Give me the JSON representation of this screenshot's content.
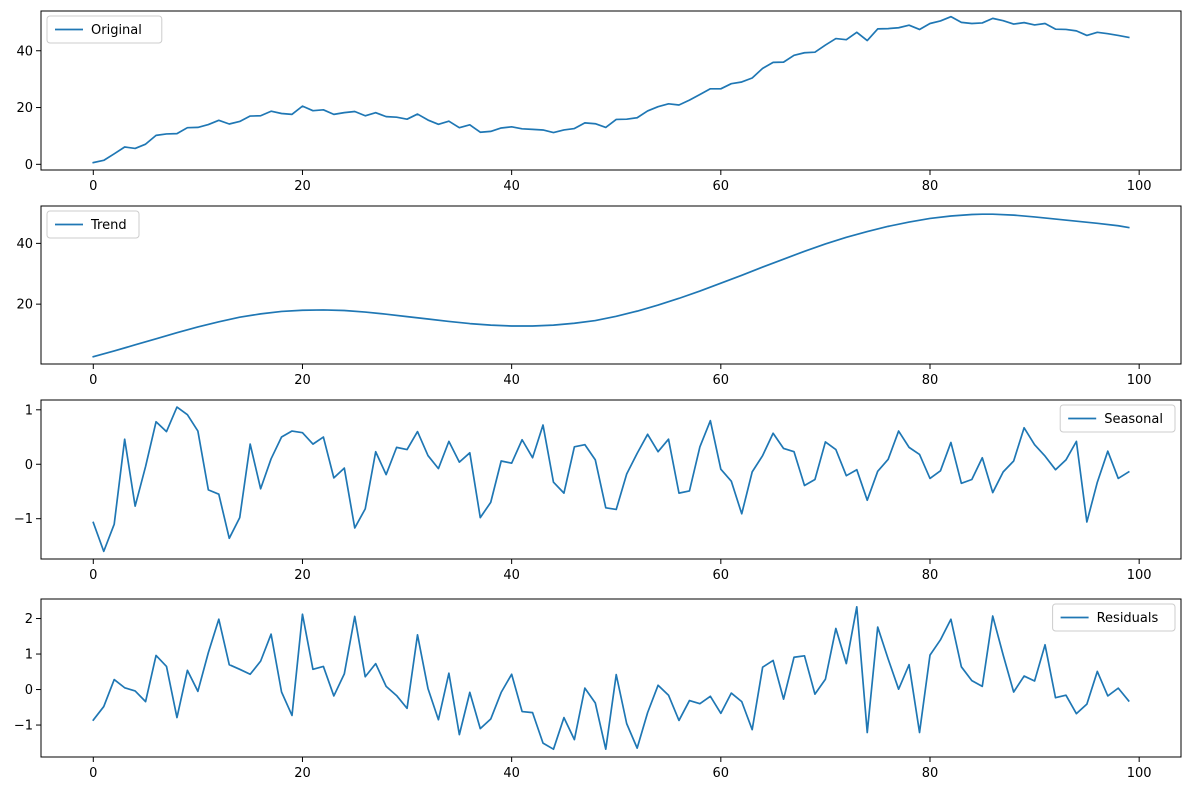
{
  "chart_data": [
    {
      "type": "line",
      "legend_position": "top-left",
      "grid": false,
      "xlim": [
        -5,
        104
      ],
      "ylim": [
        -2,
        54
      ],
      "xticks": [
        0,
        20,
        40,
        60,
        80,
        100
      ],
      "yticks": [
        0,
        20,
        40
      ],
      "series": [
        {
          "name": "Original",
          "color": "#1f77b4",
          "x": [
            0,
            1,
            2,
            3,
            4,
            5,
            6,
            7,
            8,
            9,
            10,
            11,
            12,
            13,
            14,
            15,
            16,
            17,
            18,
            19,
            20,
            21,
            22,
            23,
            24,
            25,
            26,
            27,
            28,
            29,
            30,
            31,
            32,
            33,
            34,
            35,
            36,
            37,
            38,
            39,
            40,
            41,
            42,
            43,
            44,
            45,
            46,
            47,
            48,
            49,
            50,
            51,
            52,
            53,
            54,
            55,
            56,
            57,
            58,
            59,
            60,
            61,
            62,
            63,
            64,
            65,
            66,
            67,
            68,
            69,
            70,
            71,
            72,
            73,
            74,
            75,
            76,
            77,
            78,
            79,
            80,
            81,
            82,
            83,
            84,
            85,
            86,
            87,
            88,
            89,
            90,
            91,
            92,
            93,
            94,
            95,
            96,
            97,
            98,
            99
          ],
          "values": [
            0.6,
            1.4,
            3.7,
            6.1,
            5.6,
            7.1,
            10.2,
            10.7,
            10.8,
            12.9,
            13.0,
            14.0,
            15.5,
            14.2,
            15.1,
            17.0,
            17.1,
            18.7,
            17.9,
            17.6,
            20.5,
            18.9,
            19.2,
            17.6,
            18.2,
            18.6,
            17.1,
            18.2,
            16.8,
            16.6,
            15.9,
            17.7,
            15.6,
            14.1,
            15.2,
            12.9,
            13.9,
            11.3,
            11.6,
            12.8,
            13.2,
            12.5,
            12.3,
            12.1,
            11.2,
            12.1,
            12.6,
            14.6,
            14.3,
            13.0,
            15.8,
            15.9,
            16.4,
            18.8,
            20.3,
            21.3,
            20.9,
            22.6,
            24.6,
            26.6,
            26.6,
            28.4,
            29.0,
            30.4,
            33.8,
            35.9,
            36.0,
            38.4,
            39.3,
            39.5,
            42.0,
            44.3,
            43.9,
            46.5,
            43.6,
            47.7,
            47.8,
            48.1,
            49.0,
            47.5,
            49.6,
            50.5,
            52.0,
            50.0,
            49.6,
            49.8,
            51.4,
            50.6,
            49.4,
            49.9,
            49.1,
            49.6,
            47.6,
            47.5,
            47.0,
            45.4,
            46.5,
            46.0,
            45.4,
            44.7
          ]
        }
      ]
    },
    {
      "type": "line",
      "legend_position": "top-left",
      "grid": false,
      "xlim": [
        -5,
        104
      ],
      "ylim": [
        0.3,
        52.3
      ],
      "xticks": [
        0,
        20,
        40,
        60,
        80,
        100
      ],
      "yticks": [
        20,
        40
      ],
      "series": [
        {
          "name": "Trend",
          "color": "#1f77b4",
          "x": [
            0,
            2,
            4,
            6,
            8,
            10,
            12,
            14,
            16,
            18,
            20,
            22,
            24,
            26,
            28,
            30,
            32,
            34,
            36,
            38,
            40,
            41,
            42,
            44,
            46,
            48,
            50,
            52,
            54,
            56,
            58,
            60,
            62,
            64,
            66,
            68,
            70,
            72,
            74,
            76,
            78,
            80,
            82,
            84,
            85,
            86,
            88,
            90,
            92,
            94,
            96,
            98,
            99
          ],
          "values": [
            2.7,
            4.6,
            6.6,
            8.6,
            10.6,
            12.5,
            14.2,
            15.7,
            16.8,
            17.6,
            18.0,
            18.1,
            17.9,
            17.4,
            16.7,
            15.9,
            15.1,
            14.3,
            13.6,
            13.1,
            12.8,
            12.8,
            12.8,
            13.1,
            13.7,
            14.6,
            16.0,
            17.7,
            19.7,
            21.9,
            24.3,
            26.9,
            29.5,
            32.2,
            34.8,
            37.4,
            39.8,
            42.0,
            43.9,
            45.6,
            47.0,
            48.2,
            49.0,
            49.5,
            49.6,
            49.6,
            49.3,
            48.7,
            48.0,
            47.3,
            46.6,
            45.8,
            45.2
          ]
        }
      ]
    },
    {
      "type": "line",
      "legend_position": "top-right",
      "grid": false,
      "xlim": [
        -5,
        104
      ],
      "ylim": [
        -1.74,
        1.18
      ],
      "xticks": [
        0,
        20,
        40,
        60,
        80,
        100
      ],
      "yticks": [
        -1,
        0,
        1
      ],
      "series": [
        {
          "name": "Seasonal",
          "color": "#1f77b4",
          "x": [
            0,
            1,
            2,
            3,
            4,
            5,
            6,
            7,
            8,
            9,
            10,
            11,
            12,
            13,
            14,
            15,
            16,
            17,
            18,
            19,
            20,
            21,
            22,
            23,
            24,
            25,
            26,
            27,
            28,
            29,
            30,
            31,
            32,
            33,
            34,
            35,
            36,
            37,
            38,
            39,
            40,
            41,
            42,
            43,
            44,
            45,
            46,
            47,
            48,
            49,
            50,
            51,
            52,
            53,
            54,
            55,
            56,
            57,
            58,
            59,
            60,
            61,
            62,
            63,
            64,
            65,
            66,
            67,
            68,
            69,
            70,
            71,
            72,
            73,
            74,
            75,
            76,
            77,
            78,
            79,
            80,
            81,
            82,
            83,
            84,
            85,
            86,
            87,
            88,
            89,
            90,
            91,
            92,
            93,
            94,
            95,
            96,
            97,
            98,
            99
          ],
          "values": [
            -1.07,
            -1.6,
            -1.1,
            0.46,
            -0.77,
            -0.04,
            0.78,
            0.6,
            1.05,
            0.91,
            0.61,
            -0.47,
            -0.55,
            -1.36,
            -0.98,
            0.37,
            -0.45,
            0.1,
            0.5,
            0.61,
            0.58,
            0.37,
            0.5,
            -0.25,
            -0.07,
            -1.17,
            -0.82,
            0.23,
            -0.19,
            0.31,
            0.27,
            0.6,
            0.16,
            -0.08,
            0.42,
            0.04,
            0.21,
            -0.98,
            -0.7,
            0.06,
            0.02,
            0.45,
            0.12,
            0.72,
            -0.33,
            -0.53,
            0.32,
            0.36,
            0.08,
            -0.8,
            -0.83,
            -0.18,
            0.2,
            0.55,
            0.23,
            0.46,
            -0.53,
            -0.49,
            0.32,
            0.8,
            -0.09,
            -0.31,
            -0.91,
            -0.14,
            0.16,
            0.57,
            0.29,
            0.23,
            -0.39,
            -0.28,
            0.41,
            0.27,
            -0.21,
            -0.1,
            -0.66,
            -0.13,
            0.09,
            0.61,
            0.31,
            0.18,
            -0.26,
            -0.12,
            0.4,
            -0.35,
            -0.28,
            0.12,
            -0.52,
            -0.14,
            0.06,
            0.67,
            0.36,
            0.15,
            -0.1,
            0.08,
            0.42,
            -1.06,
            -0.33,
            0.24,
            -0.26,
            -0.14
          ]
        }
      ]
    },
    {
      "type": "line",
      "legend_position": "top-right",
      "grid": false,
      "xlim": [
        -5,
        104
      ],
      "ylim": [
        -1.9,
        2.55
      ],
      "xticks": [
        0,
        20,
        40,
        60,
        80,
        100
      ],
      "yticks": [
        -1,
        0,
        1,
        2
      ],
      "series": [
        {
          "name": "Residuals",
          "color": "#1f77b4",
          "x": [
            0,
            1,
            2,
            3,
            4,
            5,
            6,
            7,
            8,
            9,
            10,
            11,
            12,
            13,
            14,
            15,
            16,
            17,
            18,
            19,
            20,
            21,
            22,
            23,
            24,
            25,
            26,
            27,
            28,
            29,
            30,
            31,
            32,
            33,
            34,
            35,
            36,
            37,
            38,
            39,
            40,
            41,
            42,
            43,
            44,
            45,
            46,
            47,
            48,
            49,
            50,
            51,
            52,
            53,
            54,
            55,
            56,
            57,
            58,
            59,
            60,
            61,
            62,
            63,
            64,
            65,
            66,
            67,
            68,
            69,
            70,
            71,
            72,
            73,
            74,
            75,
            76,
            77,
            78,
            79,
            80,
            81,
            82,
            83,
            84,
            85,
            86,
            87,
            88,
            89,
            90,
            91,
            92,
            93,
            94,
            95,
            96,
            97,
            98,
            99
          ],
          "values": [
            -0.86,
            -0.48,
            0.28,
            0.05,
            -0.04,
            -0.34,
            0.96,
            0.65,
            -0.79,
            0.54,
            -0.05,
            1.04,
            1.98,
            0.7,
            0.57,
            0.43,
            0.8,
            1.56,
            -0.07,
            -0.73,
            2.12,
            0.57,
            0.65,
            -0.18,
            0.44,
            2.06,
            0.36,
            0.73,
            0.09,
            -0.17,
            -0.53,
            1.54,
            0.03,
            -0.85,
            0.46,
            -1.27,
            -0.08,
            -1.1,
            -0.83,
            -0.08,
            0.43,
            -0.62,
            -0.65,
            -1.51,
            -1.68,
            -0.79,
            -1.41,
            0.04,
            -0.38,
            -1.68,
            0.42,
            -0.96,
            -1.65,
            -0.65,
            0.12,
            -0.16,
            -0.87,
            -0.31,
            -0.4,
            -0.19,
            -0.67,
            -0.1,
            -0.34,
            -1.13,
            0.63,
            0.82,
            -0.27,
            0.91,
            0.95,
            -0.13,
            0.29,
            1.72,
            0.73,
            2.33,
            -1.21,
            1.76,
            0.86,
            0.01,
            0.7,
            -1.21,
            0.97,
            1.4,
            1.98,
            0.64,
            0.25,
            0.09,
            2.07,
            0.97,
            -0.07,
            0.38,
            0.24,
            1.26,
            -0.23,
            -0.16,
            -0.68,
            -0.41,
            0.51,
            -0.18,
            0.04,
            -0.32
          ]
        }
      ]
    }
  ]
}
